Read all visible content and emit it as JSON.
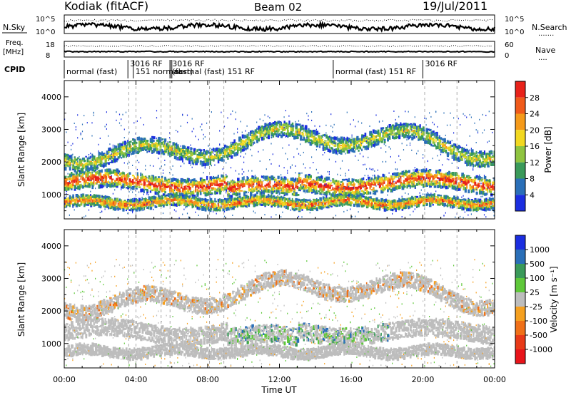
{
  "header": {
    "station": "Kodiak (fitACF)",
    "beam": "Beam 02",
    "date": "19/Jul/2011"
  },
  "strips": {
    "nsky_label": "N.Sky",
    "nsearch_label": "N.Search",
    "nsky_ticks": [
      "10^5",
      "10^0"
    ],
    "nsearch_ticks": [
      "10^5",
      "10^0"
    ],
    "freq_label_1": "Freq.",
    "freq_label_2": "[MHz]",
    "freq_ticks": [
      "18",
      "8"
    ],
    "nave_label": "Nave",
    "nave_ticks": [
      "60",
      "0"
    ],
    "cpid_label": "CPID",
    "cpid_segments": [
      {
        "text": "normal (fast)",
        "hour": 0.0
      },
      {
        "text": "3016 RF",
        "hour": 3.55
      },
      {
        "text": "151 normal",
        "hour": 3.85
      },
      {
        "text": "3016 RF",
        "hour": 5.9
      },
      {
        "text": "(fast)",
        "hour": 5.9
      },
      {
        "text": "normal (fast) 151 RF",
        "hour": 6.0
      },
      {
        "text": "normal (fast)  151 RF",
        "hour": 15.0
      },
      {
        "text": "3016 RF",
        "hour": 20.0
      }
    ]
  },
  "chart_data": [
    {
      "type": "heatmap",
      "panel": "power",
      "ylabel": "Slant Range [km]",
      "xlabel": "Time UT",
      "xlim": [
        0,
        24
      ],
      "ylim": [
        250,
        4500
      ],
      "x_ticks": [
        "00:00",
        "04:00",
        "08:00",
        "12:00",
        "16:00",
        "20:00",
        "00:00"
      ],
      "y_ticks": [
        "1000",
        "2000",
        "3000",
        "4000"
      ],
      "colorbar": {
        "label": "Power [dB]",
        "ticks": [
          "28",
          "24",
          "20",
          "16",
          "12",
          "8",
          "4"
        ],
        "colors": [
          "#e8221a",
          "#f05a1a",
          "#f59a1a",
          "#f2d820",
          "#8fc440",
          "#3a9a5a",
          "#2a6fb8",
          "#1b2ee0"
        ]
      },
      "features": [
        {
          "name": "main echo band",
          "range_km": [
            1100,
            1600
          ],
          "hours": [
            0,
            24
          ],
          "peak_dB": 28
        },
        {
          "name": "ground scatter",
          "range_km": [
            600,
            900
          ],
          "hours": [
            0,
            24
          ],
          "peak_dB": 24
        },
        {
          "name": "upper arcs",
          "range_km": [
            2200,
            3300
          ],
          "hours": [
            4,
            22
          ],
          "peak_dB": 16
        }
      ]
    },
    {
      "type": "heatmap",
      "panel": "velocity",
      "ylabel": "Slant Range [km]",
      "xlabel": "Time UT",
      "xlim": [
        0,
        24
      ],
      "ylim": [
        250,
        4500
      ],
      "x_ticks": [
        "00:00",
        "04:00",
        "08:00",
        "12:00",
        "16:00",
        "20:00",
        "00:00"
      ],
      "y_ticks": [
        "1000",
        "2000",
        "3000",
        "4000"
      ],
      "colorbar": {
        "label": "Velocity [m s⁻¹]",
        "ticks": [
          "1000",
          "500",
          "100",
          "25",
          "-25",
          "-100",
          "-500",
          "-1000"
        ],
        "colors": [
          "#1b2ee0",
          "#2a6fb8",
          "#3a9a5a",
          "#5fc83a",
          "#bdbdbd",
          "#f5a020",
          "#f07018",
          "#e83a18",
          "#e8141a"
        ]
      },
      "features": [
        {
          "name": "ground scatter (near zero)",
          "range_km": [
            600,
            1600
          ],
          "hours": [
            0,
            24
          ],
          "velocity": 0
        },
        {
          "name": "positive velocity patches",
          "range_km": [
            700,
            1700
          ],
          "hours": [
            9,
            18
          ],
          "velocity": 300
        },
        {
          "name": "negative velocity patches",
          "range_km": [
            1700,
            2400
          ],
          "hours": [
            3,
            21
          ],
          "velocity": -150
        }
      ]
    }
  ]
}
